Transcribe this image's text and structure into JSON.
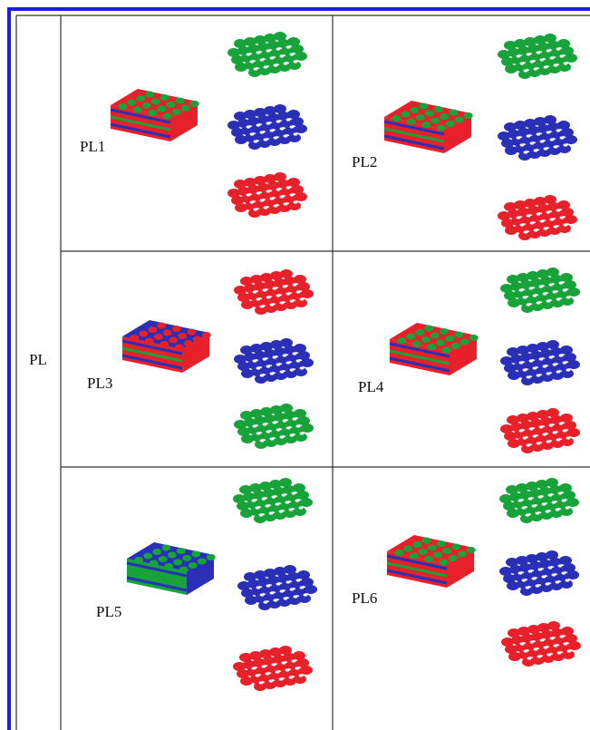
{
  "row_header": "PL",
  "cells": [
    {
      "label": "PL1"
    },
    {
      "label": "PL2"
    },
    {
      "label": "PL3"
    },
    {
      "label": "PL4"
    },
    {
      "label": "PL5"
    },
    {
      "label": "PL6"
    }
  ]
}
